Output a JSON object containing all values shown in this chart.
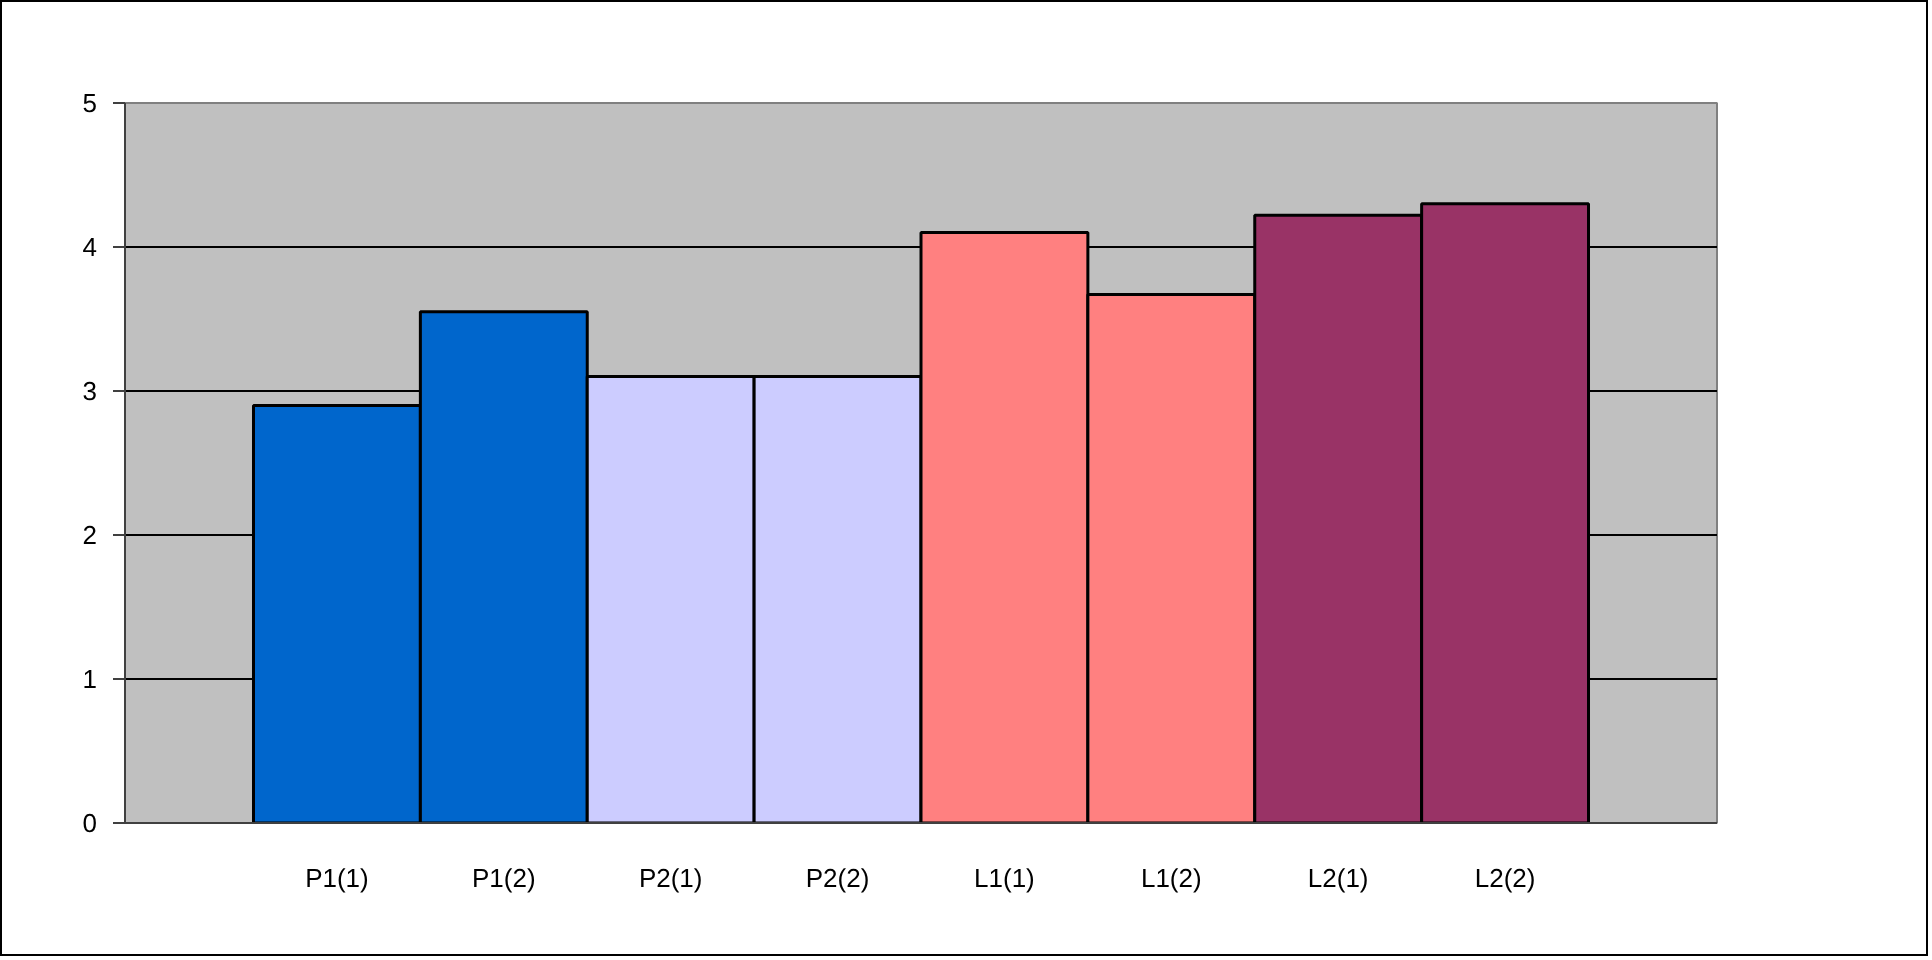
{
  "chart_data": {
    "type": "bar",
    "categories": [
      "P1(1)",
      "P1(2)",
      "P2(1)",
      "P2(2)",
      "L1(1)",
      "L1(2)",
      "L2(1)",
      "L2(2)"
    ],
    "values": [
      2.9,
      3.55,
      3.1,
      3.1,
      4.1,
      3.67,
      4.22,
      4.3
    ],
    "colors": [
      "#0066cc",
      "#0066cc",
      "#ccccff",
      "#ccccff",
      "#ff8080",
      "#ff8080",
      "#993366",
      "#993366"
    ],
    "ylim": [
      0,
      5
    ],
    "yticks": [
      0,
      1,
      2,
      3,
      4,
      5
    ],
    "grid": "y"
  }
}
